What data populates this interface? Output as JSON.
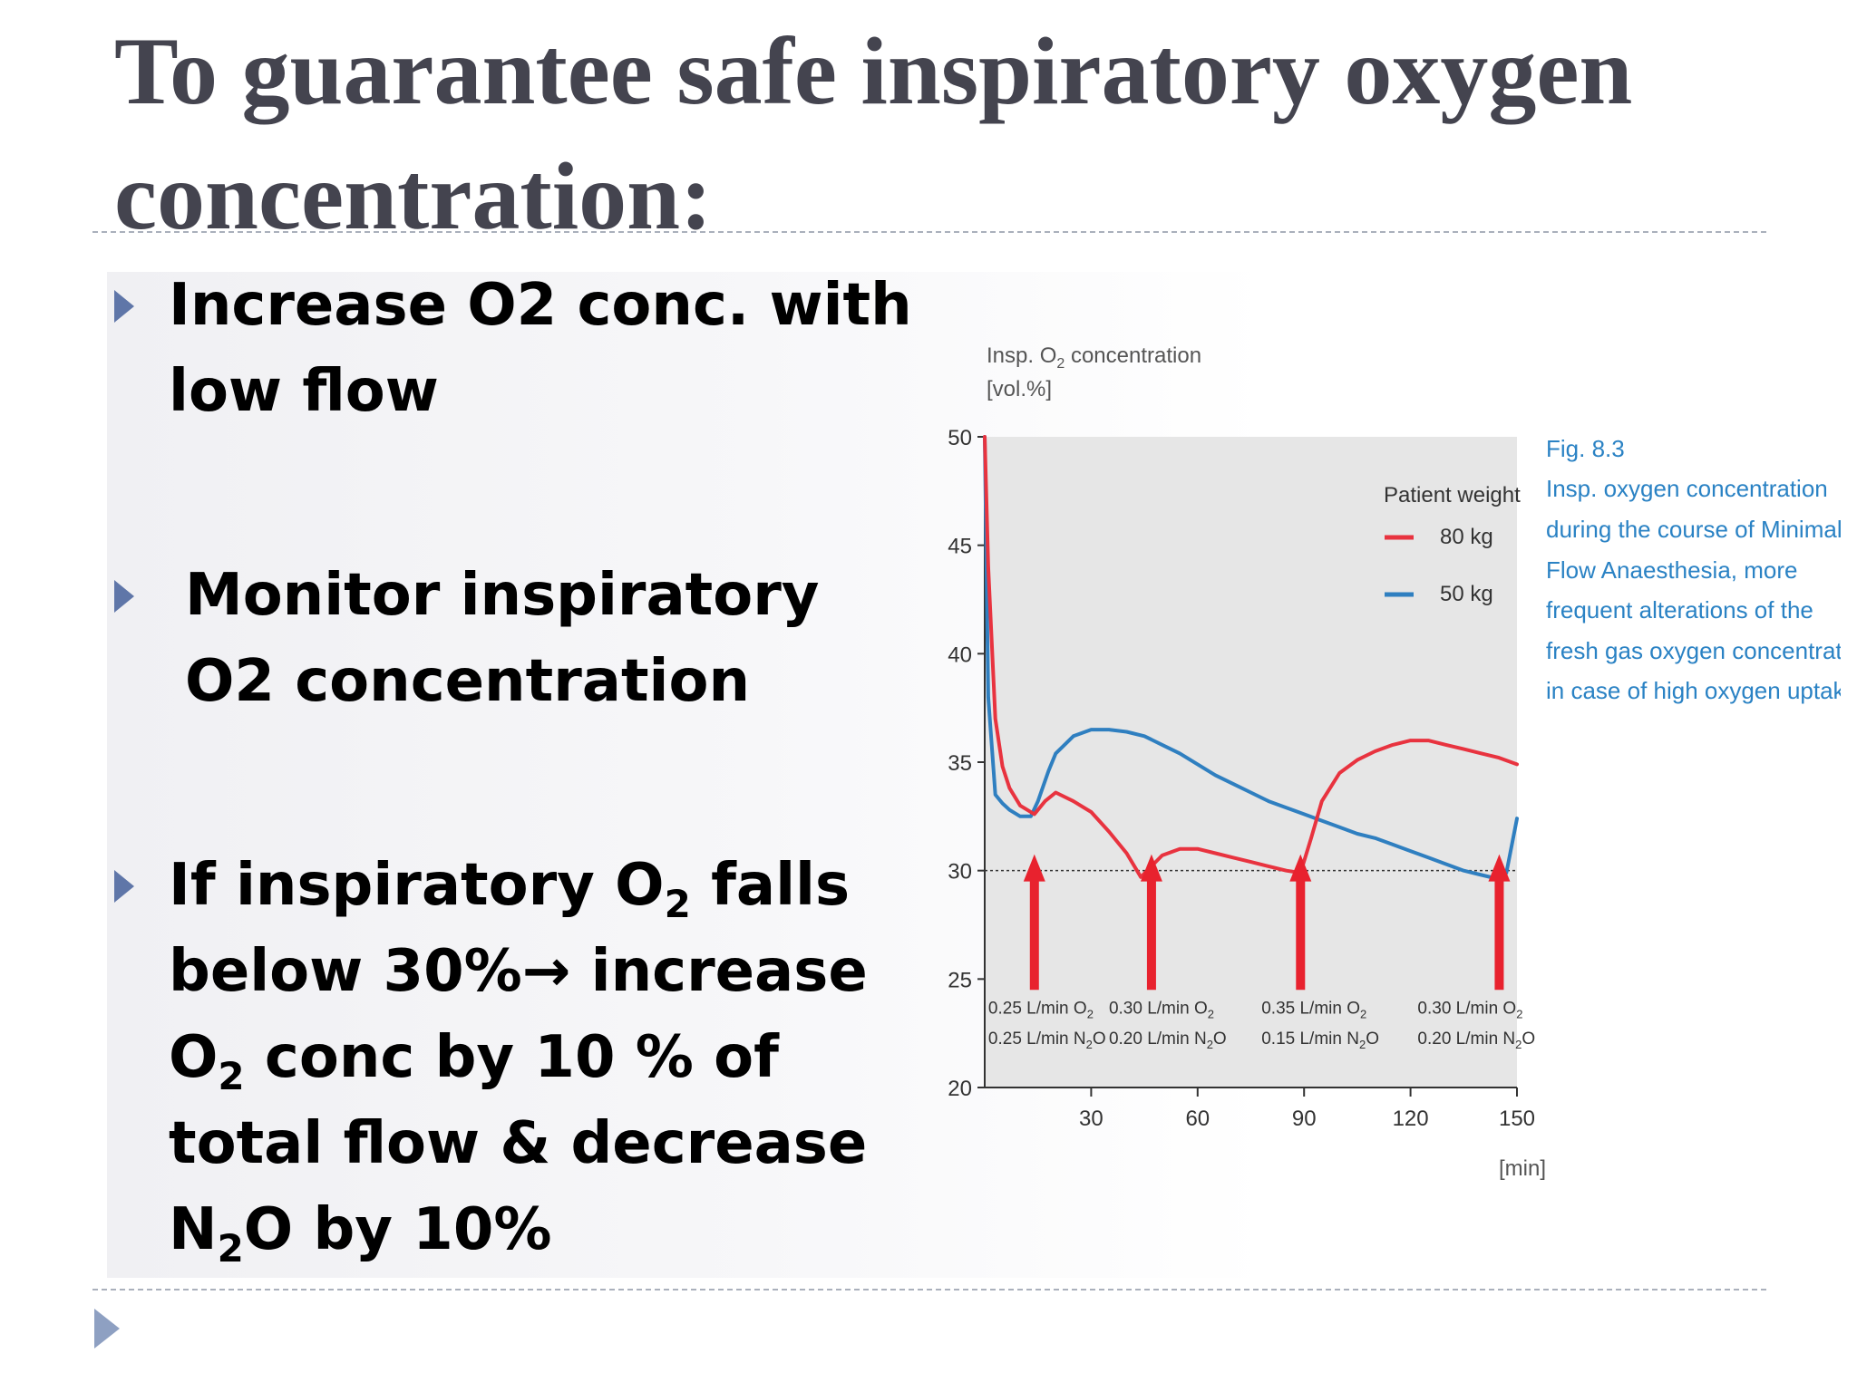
{
  "title": "To guarantee safe inspiratory oxygen concentration:",
  "bullets": {
    "b1": "Increase O2 conc. with low flow",
    "b2": "Monitor inspiratory O2 concentration",
    "b3": {
      "p1": "If inspiratory O",
      "s1": "2",
      "p2": " falls below 30%→ increase O",
      "s2": "2",
      "p3": " conc by 10 % of total flow & decrease N",
      "s3": "2",
      "p4": "O by 10%"
    }
  },
  "caption": {
    "fig": "Fig. 8.3",
    "lines": [
      "Insp. oxygen concentration",
      "during the course of Minimal",
      "Flow Anaesthesia, more",
      "frequent alterations of the",
      "fresh gas oxygen concentration",
      "in case of high oxygen uptake."
    ]
  },
  "colors": {
    "series_80kg": "#e8333f",
    "series_50kg": "#2f7fc0",
    "arrow": "#e8222e",
    "caption": "#2a82c4",
    "plot_bg": "#e6e6e6",
    "title": "#44444f",
    "bullet_marker": "#5f76a8"
  },
  "chart_data": {
    "type": "line",
    "ylabel_line1": "Insp. O",
    "ylabel_sub": "2",
    "ylabel_line1_end": " concentration",
    "ylabel_line2": "[vol.%]",
    "xlabel": "[min]",
    "xlim": [
      0,
      150
    ],
    "ylim": [
      20,
      50
    ],
    "xticks": [
      30,
      60,
      90,
      120,
      150
    ],
    "yticks": [
      20,
      25,
      30,
      35,
      40,
      45,
      50
    ],
    "legend_title": "Patient weight",
    "legend_position": "top-right",
    "reference_line": 30,
    "series": [
      {
        "name": "80 kg",
        "x": [
          0,
          1,
          3,
          5,
          7,
          10,
          14,
          17,
          20,
          25,
          30,
          35,
          40,
          44,
          47,
          50,
          55,
          60,
          65,
          70,
          75,
          80,
          85,
          89,
          92,
          95,
          100,
          105,
          110,
          115,
          120,
          125,
          130,
          135,
          140,
          145,
          150
        ],
        "y": [
          50,
          44,
          37,
          34.8,
          33.8,
          33,
          32.6,
          33.2,
          33.6,
          33.2,
          32.7,
          31.8,
          30.8,
          29.7,
          30.2,
          30.7,
          31.0,
          31.0,
          30.8,
          30.6,
          30.4,
          30.2,
          30.0,
          29.9,
          31.5,
          33.2,
          34.5,
          35.1,
          35.5,
          35.8,
          36.0,
          36.0,
          35.8,
          35.6,
          35.4,
          35.2,
          34.9
        ]
      },
      {
        "name": "50 kg",
        "x": [
          0,
          1,
          3,
          5,
          7,
          10,
          13,
          15,
          18,
          20,
          25,
          30,
          35,
          40,
          45,
          50,
          55,
          60,
          65,
          70,
          75,
          80,
          85,
          90,
          95,
          100,
          105,
          110,
          115,
          120,
          125,
          130,
          135,
          140,
          145,
          147,
          150
        ],
        "y": [
          50,
          38,
          33.5,
          33.1,
          32.8,
          32.5,
          32.5,
          33.2,
          34.6,
          35.4,
          36.2,
          36.5,
          36.5,
          36.4,
          36.2,
          35.8,
          35.4,
          34.9,
          34.4,
          34.0,
          33.6,
          33.2,
          32.9,
          32.6,
          32.3,
          32.0,
          31.7,
          31.5,
          31.2,
          30.9,
          30.6,
          30.3,
          30.0,
          29.8,
          29.6,
          29.9,
          32.4
        ]
      }
    ],
    "events": [
      {
        "x": 14,
        "o2": "0.25 L/min O",
        "n2o": "0.25 L/min N",
        "label_x": 1
      },
      {
        "x": 47,
        "o2": "0.30 L/min O",
        "n2o": "0.20 L/min N",
        "label_x": 35
      },
      {
        "x": 89,
        "o2": "0.35 L/min O",
        "n2o": "0.15 L/min N",
        "label_x": 78
      },
      {
        "x": 145,
        "o2": "0.30 L/min O",
        "n2o": "0.20 L/min N",
        "label_x": 122
      }
    ],
    "event_sub": "2",
    "event_o_suffix": "O"
  }
}
